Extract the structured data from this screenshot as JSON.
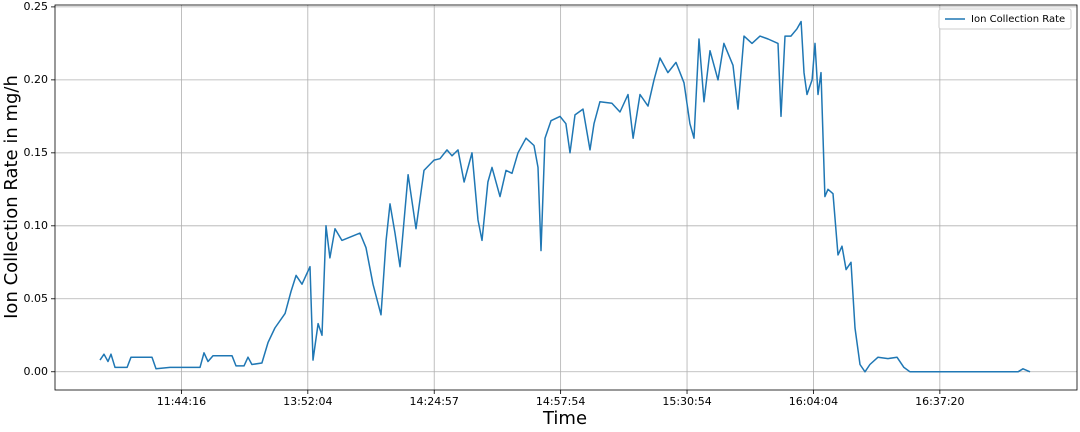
{
  "chart_data": {
    "type": "line",
    "xlabel": "Time",
    "ylabel": "Ion Collection Rate in mg/h",
    "x": [
      356,
      388,
      419,
      443,
      475,
      570,
      601,
      767,
      799,
      910,
      1147,
      1179,
      1210,
      1250,
      1400,
      1432,
      1495,
      1527,
      1558,
      1637,
      1685,
      1740,
      1820,
      1867,
      1907,
      1954,
      2017,
      2041,
      2081,
      2112,
      2144,
      2175,
      2215,
      2270,
      2413,
      2460,
      2516,
      2579,
      2619,
      2650,
      2690,
      2729,
      2793,
      2856,
      2919,
      2998,
      3046,
      3101,
      3141,
      3188,
      3236,
      3299,
      3346,
      3378,
      3425,
      3457,
      3520,
      3568,
      3615,
      3663,
      3726,
      3789,
      3821,
      3845,
      3876,
      3924,
      3995,
      4042,
      4074,
      4114,
      4177,
      4232,
      4264,
      4311,
      4406,
      4470,
      4533,
      4573,
      4628,
      4691,
      4739,
      4786,
      4849,
      4913,
      4976,
      5023,
      5055,
      5095,
      5134,
      5182,
      5245,
      5292,
      5364,
      5403,
      5451,
      5514,
      5577,
      5641,
      5720,
      5743,
      5775,
      5822,
      5870,
      5902,
      5925,
      5949,
      5989,
      6012,
      6036,
      6060,
      6091,
      6115,
      6155,
      6194,
      6226,
      6258,
      6297,
      6329,
      6368,
      6408,
      6447,
      6511,
      6590,
      6661,
      6716,
      6764,
      7618,
      7658,
      7713
    ],
    "series": [
      {
        "name": "Ion Collection Rate",
        "color": "#1f77b4",
        "values": [
          0.008,
          0.012,
          0.007,
          0.012,
          0.003,
          0.003,
          0.01,
          0.01,
          0.002,
          0.003,
          0.003,
          0.013,
          0.007,
          0.011,
          0.011,
          0.004,
          0.004,
          0.01,
          0.005,
          0.006,
          0.02,
          0.03,
          0.04,
          0.055,
          0.066,
          0.06,
          0.072,
          0.008,
          0.033,
          0.025,
          0.1,
          0.078,
          0.098,
          0.09,
          0.095,
          0.085,
          0.06,
          0.039,
          0.09,
          0.115,
          0.095,
          0.072,
          0.135,
          0.098,
          0.138,
          0.145,
          0.146,
          0.152,
          0.148,
          0.152,
          0.13,
          0.15,
          0.104,
          0.09,
          0.13,
          0.14,
          0.12,
          0.138,
          0.136,
          0.15,
          0.16,
          0.155,
          0.14,
          0.083,
          0.16,
          0.172,
          0.175,
          0.17,
          0.15,
          0.176,
          0.18,
          0.152,
          0.17,
          0.185,
          0.184,
          0.178,
          0.19,
          0.16,
          0.19,
          0.182,
          0.2,
          0.215,
          0.205,
          0.212,
          0.198,
          0.17,
          0.16,
          0.228,
          0.185,
          0.22,
          0.2,
          0.225,
          0.21,
          0.18,
          0.23,
          0.225,
          0.23,
          0.228,
          0.225,
          0.175,
          0.23,
          0.23,
          0.235,
          0.24,
          0.205,
          0.19,
          0.2,
          0.225,
          0.19,
          0.205,
          0.12,
          0.125,
          0.122,
          0.08,
          0.086,
          0.07,
          0.075,
          0.03,
          0.005,
          0.0,
          0.005,
          0.01,
          0.009,
          0.01,
          0.003,
          0.0,
          0.0,
          0.002,
          0.0
        ]
      }
    ],
    "xlim": [
      0,
      8085
    ],
    "xticks": [
      {
        "value": 1000,
        "label": "11:44:16"
      },
      {
        "value": 2000,
        "label": "13:52:04"
      },
      {
        "value": 3000,
        "label": "14:24:57"
      },
      {
        "value": 4000,
        "label": "14:57:54"
      },
      {
        "value": 5000,
        "label": "15:30:54"
      },
      {
        "value": 6000,
        "label": "16:04:04"
      },
      {
        "value": 7000,
        "label": "16:37:20"
      }
    ],
    "ylim": [
      -0.0125,
      0.2513
    ],
    "yticks": [
      {
        "value": 0,
        "label": "0.00"
      },
      {
        "value": 0.05,
        "label": "0.05"
      },
      {
        "value": 0.1,
        "label": "0.10"
      },
      {
        "value": 0.15,
        "label": "0.15"
      },
      {
        "value": 0.2,
        "label": "0.20"
      },
      {
        "value": 0.25,
        "label": "0.25"
      }
    ],
    "grid": true,
    "legend": "upper right"
  }
}
